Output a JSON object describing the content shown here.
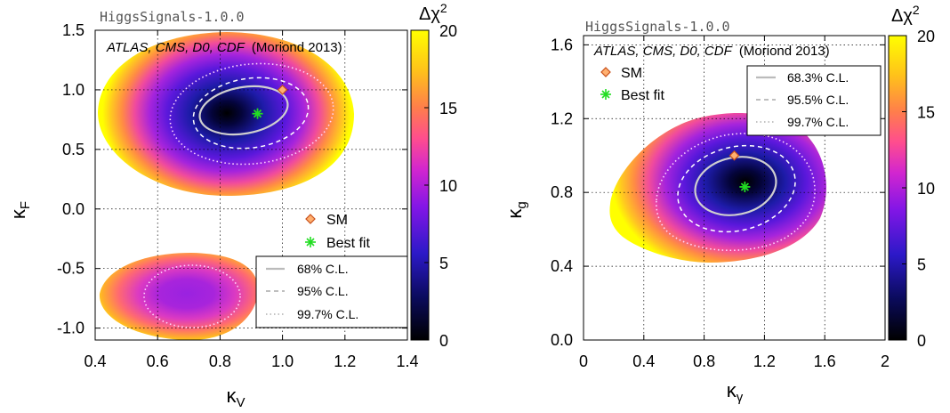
{
  "chart_data": [
    {
      "type": "heatmap",
      "title": "",
      "watermark": "HiggsSignals-1.0.0",
      "experiments_label": "ATLAS, CMS, D0, CDF",
      "dataset_label": "(Moriond 2013)",
      "xlabel": "κ",
      "xlabel_sub": "V",
      "ylabel": "κ",
      "ylabel_sub": "F",
      "xlim": [
        0.4,
        1.4
      ],
      "ylim": [
        -1.1,
        1.5
      ],
      "xticks": [
        "0.4",
        "0.6",
        "0.8",
        "1.0",
        "1.2",
        "1.4"
      ],
      "xtick_values": [
        0.4,
        0.6,
        0.8,
        1.0,
        1.2,
        1.4
      ],
      "yticks": [
        "1.5",
        "1.0",
        "0.5",
        "0.0",
        "-0.5",
        "-1.0"
      ],
      "ytick_values": [
        1.5,
        1.0,
        0.5,
        0.0,
        -0.5,
        -1.0
      ],
      "grid": true,
      "colorbar": {
        "label": "Δχ",
        "label_sup": "2",
        "min": 0,
        "max": 20,
        "ticks": [
          "0",
          "5",
          "10",
          "15",
          "20"
        ]
      },
      "points": {
        "sm": {
          "name": "SM",
          "x": 1.0,
          "y": 1.0
        },
        "best_fit": {
          "name": "Best fit",
          "x": 0.92,
          "y": 0.8
        }
      },
      "legend": {
        "placement": "bottom-right",
        "markers": [
          "SM",
          "Best fit"
        ],
        "contours": [
          "68% C.L.",
          "95% C.L.",
          "99.7% C.L."
        ]
      },
      "regions": [
        {
          "name": "positive",
          "center": [
            0.92,
            0.8
          ],
          "extent": [
            0.45,
            1.2,
            0.4,
            1.25
          ]
        },
        {
          "name": "negative",
          "center": [
            0.71,
            -0.72
          ],
          "extent": [
            0.43,
            1.0,
            -1.05,
            -0.38
          ]
        }
      ]
    },
    {
      "type": "heatmap",
      "title": "",
      "watermark": "HiggsSignals-1.0.0",
      "experiments_label": "ATLAS, CMS, D0, CDF",
      "dataset_label": "(Moriond 2013)",
      "xlabel": "κ",
      "xlabel_sub": "γ",
      "ylabel": "κ",
      "ylabel_sub": "g",
      "xlim": [
        0,
        2
      ],
      "ylim": [
        0.0,
        1.65
      ],
      "xticks": [
        "0",
        "0.4",
        "0.8",
        "1.2",
        "1.6",
        "2"
      ],
      "xtick_values": [
        0,
        0.4,
        0.8,
        1.2,
        1.6,
        2.0
      ],
      "yticks": [
        "1.6",
        "1.2",
        "0.8",
        "0.4",
        "0.0"
      ],
      "ytick_values": [
        1.6,
        1.2,
        0.8,
        0.4,
        0.0
      ],
      "grid": true,
      "colorbar": {
        "label": "Δχ",
        "label_sup": "2",
        "min": 0,
        "max": 20,
        "ticks": [
          "0",
          "5",
          "10",
          "15",
          "20"
        ]
      },
      "points": {
        "sm": {
          "name": "SM",
          "x": 1.0,
          "y": 1.0
        },
        "best_fit": {
          "name": "Best fit",
          "x": 1.07,
          "y": 0.83
        }
      },
      "legend": {
        "placement": "top",
        "markers": [
          "SM",
          "Best fit"
        ],
        "contours": [
          "68.3% C.L.",
          "95.5% C.L.",
          "99.7% C.L."
        ]
      },
      "regions": [
        {
          "name": "main",
          "center": [
            1.07,
            0.83
          ],
          "extent": [
            0.17,
            1.65,
            0.4,
            1.13
          ]
        }
      ]
    }
  ]
}
